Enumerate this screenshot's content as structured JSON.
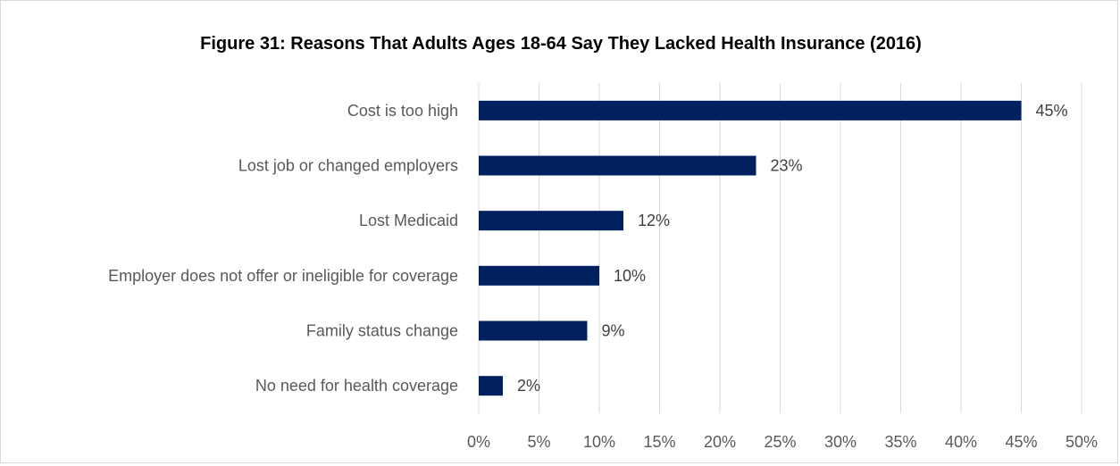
{
  "chart_data": {
    "type": "bar",
    "orientation": "horizontal",
    "title": "Figure 31: Reasons That Adults Ages 18-64 Say They Lacked Health Insurance (2016)",
    "xlabel": "",
    "ylabel": "",
    "categories": [
      "Cost is too high",
      "Lost job or changed employers",
      "Lost Medicaid",
      "Employer does not offer or ineligible for coverage",
      "Family status change",
      "No need for health coverage"
    ],
    "values": [
      45,
      23,
      12,
      10,
      9,
      2
    ],
    "data_labels": [
      "45%",
      "23%",
      "12%",
      "10%",
      "9%",
      "2%"
    ],
    "xlim": [
      0,
      50
    ],
    "xticks": [
      0,
      5,
      10,
      15,
      20,
      25,
      30,
      35,
      40,
      45,
      50
    ],
    "xtick_labels": [
      "0%",
      "5%",
      "10%",
      "15%",
      "20%",
      "25%",
      "30%",
      "35%",
      "40%",
      "45%",
      "50%"
    ],
    "grid": "vertical",
    "legend": "none",
    "bar_color": "#002060"
  }
}
